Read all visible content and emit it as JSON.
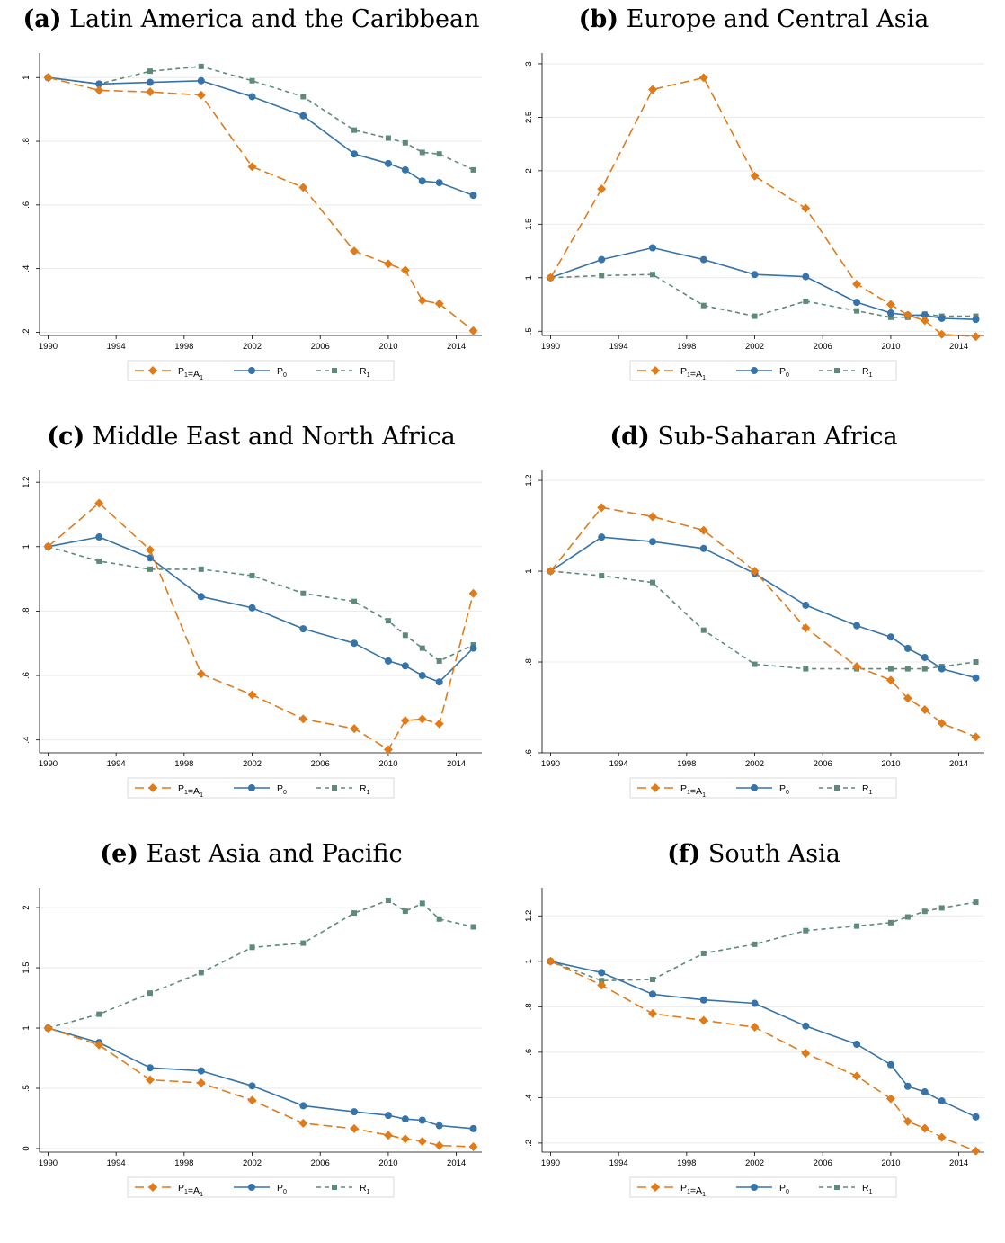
{
  "legend": [
    {
      "main": "P",
      "sub": "1",
      "mid": "=A",
      "sub2": "1",
      "color": "#e07b1a",
      "marker": "diamond",
      "dash": "long"
    },
    {
      "main": "P",
      "sub": "0",
      "mid": "",
      "sub2": "",
      "color": "#3673a8",
      "marker": "circle",
      "dash": "solid"
    },
    {
      "main": "R",
      "sub": "1",
      "mid": "",
      "sub2": "",
      "color": "#5e8a78",
      "marker": "square",
      "dash": "short"
    }
  ],
  "chart_data": [
    {
      "type": "line",
      "panel_label": "(a)",
      "title": "Latin America and the Caribbean",
      "x": [
        1990,
        1993,
        1996,
        1999,
        2002,
        2005,
        2008,
        2010,
        2011,
        2012,
        2013,
        2015
      ],
      "xticks": [
        1990,
        1994,
        1998,
        2002,
        2006,
        2010,
        2014
      ],
      "yticks": [
        0.2,
        0.4,
        0.6,
        0.8,
        1
      ],
      "ytick_labels": [
        ".2",
        ".4",
        ".6",
        ".8",
        "1"
      ],
      "ylim": [
        0.19,
        1.06
      ],
      "series": [
        {
          "name": "P1=A1",
          "values": [
            1.0,
            0.96,
            0.955,
            0.945,
            0.72,
            0.655,
            0.455,
            0.415,
            0.395,
            0.3,
            0.29,
            0.205
          ]
        },
        {
          "name": "P0",
          "values": [
            1.0,
            0.98,
            0.985,
            0.99,
            0.94,
            0.88,
            0.76,
            0.73,
            0.71,
            0.675,
            0.67,
            0.63
          ]
        },
        {
          "name": "R1",
          "values": [
            1.0,
            0.98,
            1.02,
            1.035,
            0.99,
            0.94,
            0.835,
            0.81,
            0.795,
            0.765,
            0.76,
            0.71
          ]
        }
      ]
    },
    {
      "type": "line",
      "panel_label": "(b)",
      "title": "Europe and Central Asia",
      "x": [
        1990,
        1993,
        1996,
        1999,
        2002,
        2005,
        2008,
        2010,
        2011,
        2012,
        2013,
        2015
      ],
      "xticks": [
        1990,
        1994,
        1998,
        2002,
        2006,
        2010,
        2014
      ],
      "yticks": [
        0.5,
        1,
        1.5,
        2,
        2.5,
        3
      ],
      "ytick_labels": [
        ".5",
        "1",
        "1.5",
        "2",
        "2.5",
        "3"
      ],
      "ylim": [
        0.46,
        3.05
      ],
      "series": [
        {
          "name": "P1=A1",
          "values": [
            1.0,
            1.83,
            2.76,
            2.87,
            1.95,
            1.65,
            0.94,
            0.75,
            0.65,
            0.6,
            0.47,
            0.45
          ]
        },
        {
          "name": "P0",
          "values": [
            1.0,
            1.17,
            1.28,
            1.17,
            1.03,
            1.01,
            0.77,
            0.67,
            0.65,
            0.65,
            0.62,
            0.61
          ]
        },
        {
          "name": "R1",
          "values": [
            1.0,
            1.02,
            1.03,
            0.74,
            0.64,
            0.78,
            0.69,
            0.63,
            0.63,
            0.66,
            0.64,
            0.64
          ]
        }
      ]
    },
    {
      "type": "line",
      "panel_label": "(c)",
      "title": "Middle East and North Africa",
      "x": [
        1990,
        1993,
        1996,
        1999,
        2002,
        2005,
        2008,
        2010,
        2011,
        2012,
        2013,
        2015
      ],
      "xticks": [
        1990,
        1994,
        1998,
        2002,
        2006,
        2010,
        2014
      ],
      "yticks": [
        0.4,
        0.6,
        0.8,
        1,
        1.2
      ],
      "ytick_labels": [
        ".4",
        ".6",
        ".8",
        "1",
        "1.2"
      ],
      "ylim": [
        0.36,
        1.22
      ],
      "series": [
        {
          "name": "P1=A1",
          "values": [
            1.0,
            1.135,
            0.99,
            0.605,
            0.54,
            0.465,
            0.435,
            0.37,
            0.46,
            0.465,
            0.45,
            0.855
          ]
        },
        {
          "name": "P0",
          "values": [
            1.0,
            1.03,
            0.965,
            0.845,
            0.81,
            0.745,
            0.7,
            0.645,
            0.63,
            0.6,
            0.58,
            0.685
          ]
        },
        {
          "name": "R1",
          "values": [
            1.0,
            0.955,
            0.93,
            0.93,
            0.91,
            0.855,
            0.83,
            0.77,
            0.725,
            0.685,
            0.645,
            0.695
          ]
        }
      ]
    },
    {
      "type": "line",
      "panel_label": "(d)",
      "title": "Sub-Saharan Africa",
      "x": [
        1990,
        1993,
        1996,
        1999,
        2002,
        2005,
        2008,
        2010,
        2011,
        2012,
        2013,
        2015
      ],
      "xticks": [
        1990,
        1994,
        1998,
        2002,
        2006,
        2010,
        2014
      ],
      "yticks": [
        0.6,
        0.8,
        1,
        1.2
      ],
      "ytick_labels": [
        ".6",
        ".8",
        "1",
        "1.2"
      ],
      "ylim": [
        0.6,
        1.21
      ],
      "series": [
        {
          "name": "P1=A1",
          "values": [
            1.0,
            1.14,
            1.12,
            1.09,
            1.0,
            0.875,
            0.79,
            0.76,
            0.72,
            0.695,
            0.665,
            0.635
          ]
        },
        {
          "name": "P0",
          "values": [
            1.0,
            1.075,
            1.065,
            1.05,
            0.995,
            0.925,
            0.88,
            0.855,
            0.83,
            0.81,
            0.785,
            0.765
          ]
        },
        {
          "name": "R1",
          "values": [
            1.0,
            0.99,
            0.975,
            0.87,
            0.795,
            0.785,
            0.785,
            0.785,
            0.785,
            0.785,
            0.79,
            0.8
          ]
        }
      ]
    },
    {
      "type": "line",
      "panel_label": "(e)",
      "title": "East Asia and Pacific",
      "x": [
        1990,
        1993,
        1996,
        1999,
        2002,
        2005,
        2008,
        2010,
        2011,
        2012,
        2013,
        2015
      ],
      "xticks": [
        1990,
        1994,
        1998,
        2002,
        2006,
        2010,
        2014
      ],
      "yticks": [
        0,
        0.5,
        1,
        1.5,
        2
      ],
      "ytick_labels": [
        "0",
        ".5",
        "1",
        "1.5",
        "2"
      ],
      "ylim": [
        -0.03,
        2.12
      ],
      "series": [
        {
          "name": "P1=A1",
          "values": [
            1.0,
            0.86,
            0.57,
            0.545,
            0.4,
            0.21,
            0.165,
            0.11,
            0.08,
            0.06,
            0.025,
            0.015
          ]
        },
        {
          "name": "P0",
          "values": [
            1.0,
            0.88,
            0.67,
            0.645,
            0.52,
            0.355,
            0.305,
            0.275,
            0.245,
            0.235,
            0.19,
            0.165
          ]
        },
        {
          "name": "R1",
          "values": [
            1.0,
            1.115,
            1.29,
            1.46,
            1.67,
            1.705,
            1.955,
            2.06,
            1.97,
            2.035,
            1.905,
            1.84
          ]
        }
      ]
    },
    {
      "type": "line",
      "panel_label": "(f)",
      "title": "South Asia",
      "x": [
        1990,
        1993,
        1996,
        1999,
        2002,
        2005,
        2008,
        2010,
        2011,
        2012,
        2013,
        2015
      ],
      "xticks": [
        1990,
        1994,
        1998,
        2002,
        2006,
        2010,
        2014
      ],
      "yticks": [
        0.2,
        0.4,
        0.6,
        0.8,
        1,
        1.2
      ],
      "ytick_labels": [
        ".2",
        ".4",
        ".6",
        ".8",
        "1",
        "1.2"
      ],
      "ylim": [
        0.16,
        1.3
      ],
      "series": [
        {
          "name": "P1=A1",
          "values": [
            1.0,
            0.895,
            0.77,
            0.74,
            0.71,
            0.595,
            0.495,
            0.395,
            0.295,
            0.265,
            0.225,
            0.165
          ]
        },
        {
          "name": "P0",
          "values": [
            1.0,
            0.95,
            0.855,
            0.83,
            0.815,
            0.715,
            0.635,
            0.545,
            0.45,
            0.425,
            0.385,
            0.315
          ]
        },
        {
          "name": "R1",
          "values": [
            1.0,
            0.915,
            0.92,
            1.035,
            1.075,
            1.135,
            1.155,
            1.17,
            1.195,
            1.22,
            1.235,
            1.26
          ]
        }
      ]
    }
  ]
}
